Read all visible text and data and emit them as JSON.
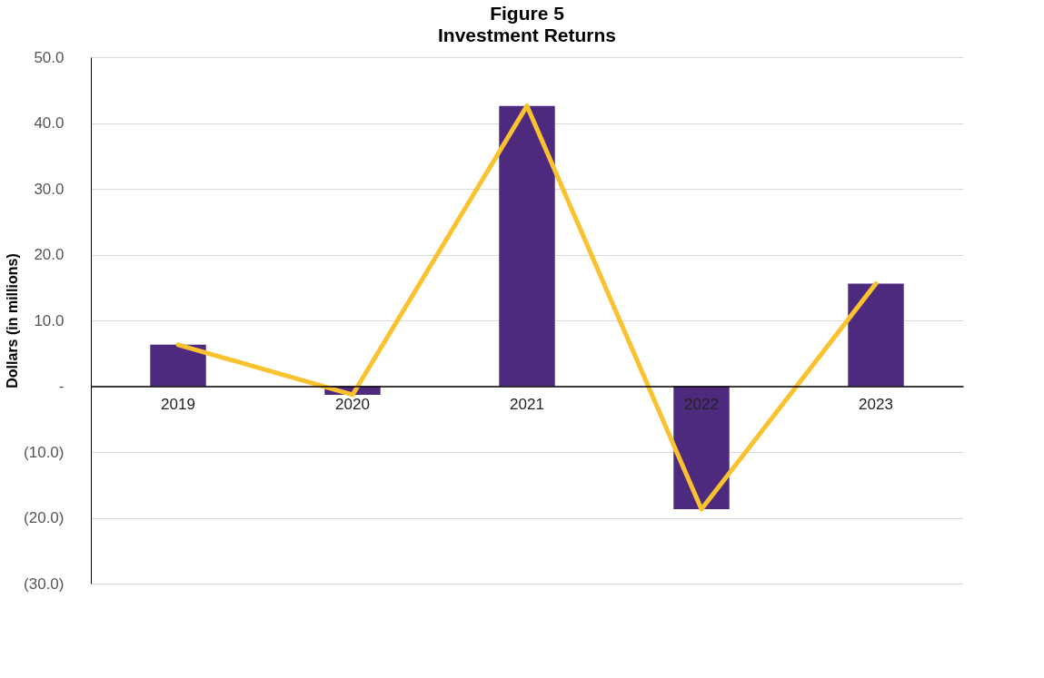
{
  "chart_data": {
    "type": "bar",
    "title": "Figure 5",
    "subtitle": "Investment Returns",
    "ylabel": "Dollars (in millions)",
    "categories": [
      "2019",
      "2020",
      "2021",
      "2022",
      "2023"
    ],
    "series": [
      {
        "color": "#4e2a7f",
        "values": [
          6.3,
          -1.3,
          42.6,
          -18.7,
          15.6
        ]
      },
      {
        "type": "line",
        "color": "#fbc230",
        "values": [
          6.3,
          -1.3,
          42.6,
          -18.7,
          15.6
        ]
      }
    ],
    "ylim": [
      -30,
      50
    ],
    "yticks": [
      {
        "value": -30,
        "label": "(30.0)"
      },
      {
        "value": -20,
        "label": "(20.0)"
      },
      {
        "value": -10,
        "label": "(10.0)"
      },
      {
        "value": 0,
        "label": "-"
      },
      {
        "value": 10,
        "label": "10.0"
      },
      {
        "value": 20,
        "label": "20.0"
      },
      {
        "value": 30,
        "label": "30.0"
      },
      {
        "value": 40,
        "label": "40.0"
      },
      {
        "value": 50,
        "label": "50.0"
      }
    ],
    "grid": "y",
    "marker": "none",
    "line_style": "solid"
  }
}
